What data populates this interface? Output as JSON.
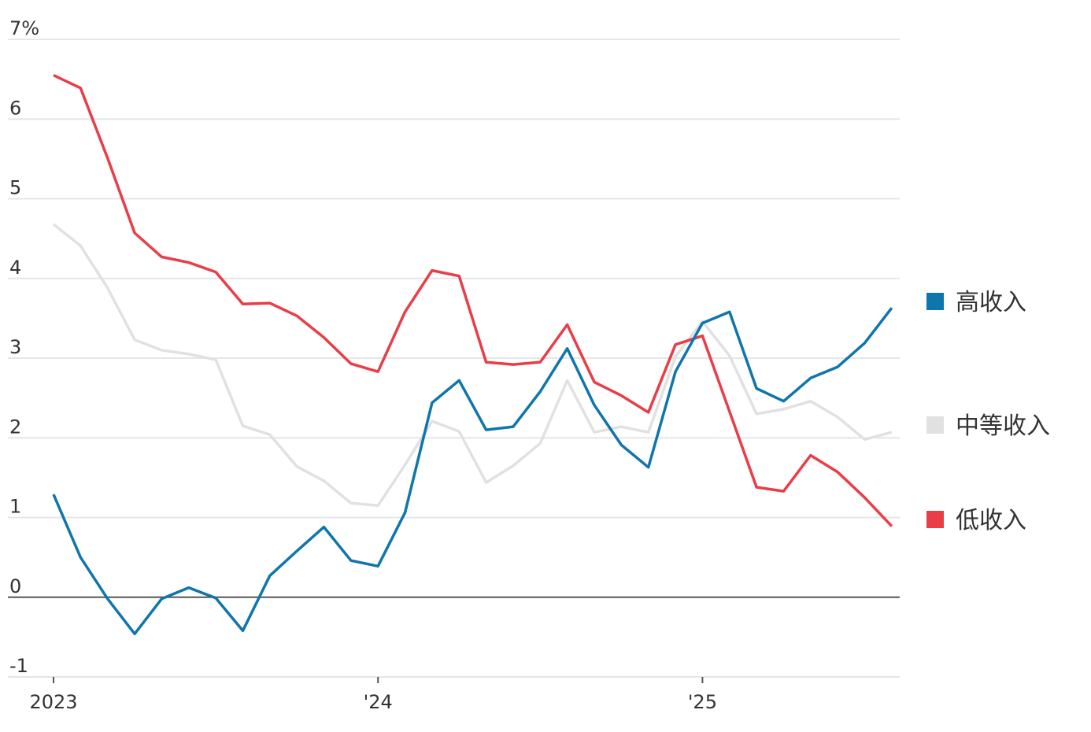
{
  "chart_data": {
    "type": "line",
    "categories": [
      "2023",
      null,
      null,
      null,
      null,
      null,
      null,
      null,
      null,
      null,
      null,
      null,
      "'24",
      null,
      null,
      null,
      null,
      null,
      null,
      null,
      null,
      null,
      null,
      null,
      "'25",
      null,
      null,
      null,
      null,
      null,
      null,
      null
    ],
    "series": [
      {
        "name": "高收入",
        "color": "#0f76ad",
        "values": [
          1.29,
          0.5,
          -0.02,
          -0.46,
          -0.02,
          0.12,
          -0.01,
          -0.42,
          0.27,
          0.58,
          0.88,
          0.46,
          0.39,
          1.06,
          2.44,
          2.72,
          2.1,
          2.14,
          2.58,
          3.12,
          2.41,
          1.91,
          1.63,
          2.83,
          3.44,
          3.58,
          2.62,
          2.46,
          2.75,
          2.89,
          3.19,
          3.63
        ]
      },
      {
        "name": "中等收入",
        "color": "#e1e1e1",
        "values": [
          4.68,
          4.41,
          3.88,
          3.23,
          3.1,
          3.05,
          2.98,
          2.15,
          2.04,
          1.64,
          1.46,
          1.18,
          1.15,
          1.66,
          2.21,
          2.08,
          1.44,
          1.65,
          1.93,
          2.72,
          2.07,
          2.14,
          2.07,
          3.02,
          3.46,
          3.03,
          2.3,
          2.36,
          2.46,
          2.26,
          1.98,
          2.07
        ]
      },
      {
        "name": "低收入",
        "color": "#e93d48",
        "values": [
          6.55,
          6.39,
          5.51,
          4.57,
          4.27,
          4.2,
          4.08,
          3.68,
          3.69,
          3.53,
          3.26,
          2.93,
          2.83,
          3.58,
          4.1,
          4.03,
          2.95,
          2.92,
          2.95,
          3.42,
          2.7,
          2.53,
          2.32,
          3.17,
          3.28,
          2.33,
          1.38,
          1.33,
          1.78,
          1.57,
          1.25,
          0.89
        ]
      }
    ],
    "ylim": [
      -1,
      7
    ],
    "yticks": [
      -1,
      0,
      1,
      2,
      3,
      4,
      5,
      6,
      {
        "value": 7,
        "label": "7%"
      }
    ],
    "grid": true,
    "legend": "right"
  }
}
